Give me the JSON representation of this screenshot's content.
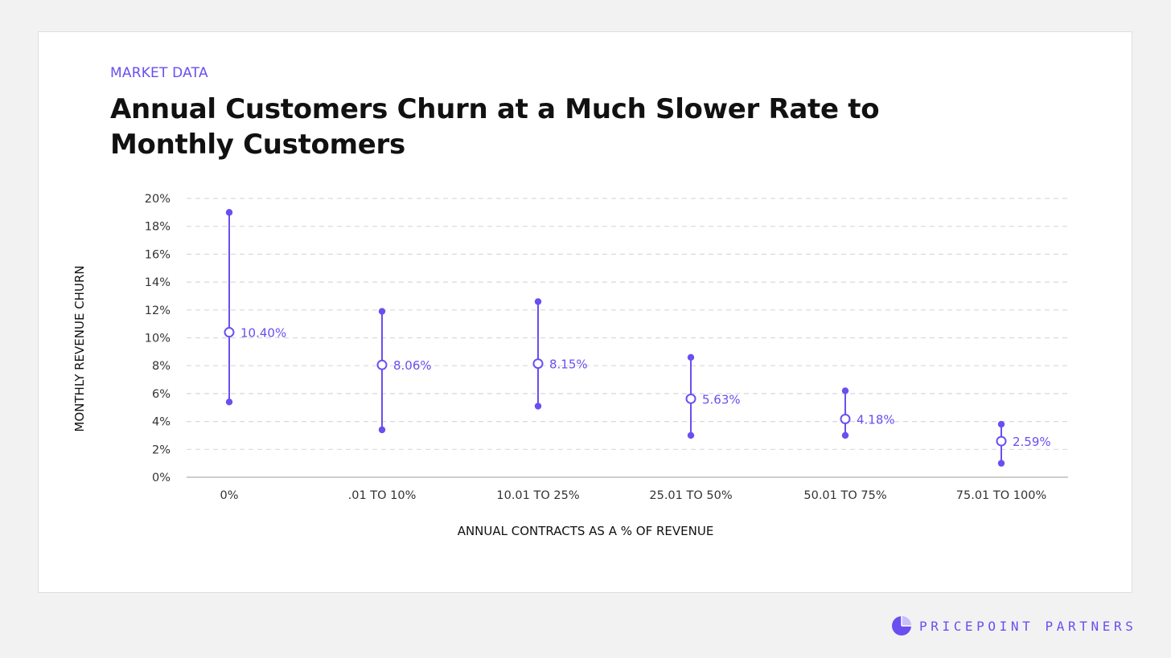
{
  "header": {
    "eyebrow": "MARKET DATA",
    "title": "Annual Customers Churn at a Much Slower Rate to Monthly Customers"
  },
  "brand": {
    "name": "PRICEPOINT PARTNERS",
    "icon": "pie-chart-logo-icon"
  },
  "colors": {
    "accent": "#6b4ef0",
    "grid": "#d9d9d9",
    "axis": "#bdbdbd",
    "text": "#111111"
  },
  "chart_data": {
    "type": "range-dot",
    "xlabel": "ANNUAL CONTRACTS AS A % OF REVENUE",
    "ylabel": "MONTHLY REVENUE CHURN",
    "ylim": [
      0,
      20
    ],
    "y_ticks": [
      0,
      2,
      4,
      6,
      8,
      10,
      12,
      14,
      16,
      18,
      20
    ],
    "y_tick_labels": [
      "0%",
      "2%",
      "4%",
      "6%",
      "8%",
      "10%",
      "12%",
      "14%",
      "16%",
      "18%",
      "20%"
    ],
    "grid": true,
    "categories": [
      "0%",
      ".01 TO 10%",
      "10.01 TO 25%",
      "25.01 TO 50%",
      "50.01 TO 75%",
      "75.01 TO 100%"
    ],
    "series": [
      {
        "mid": [
          10.4,
          8.06,
          8.15,
          5.63,
          4.18,
          2.59
        ],
        "high": [
          19.0,
          11.9,
          12.6,
          8.6,
          6.2,
          3.8
        ],
        "low": [
          5.4,
          3.4,
          5.1,
          3.0,
          3.0,
          1.0
        ],
        "labels": [
          "10.40%",
          "8.06%",
          "8.15%",
          "5.63%",
          "4.18%",
          "2.59%"
        ]
      }
    ]
  }
}
